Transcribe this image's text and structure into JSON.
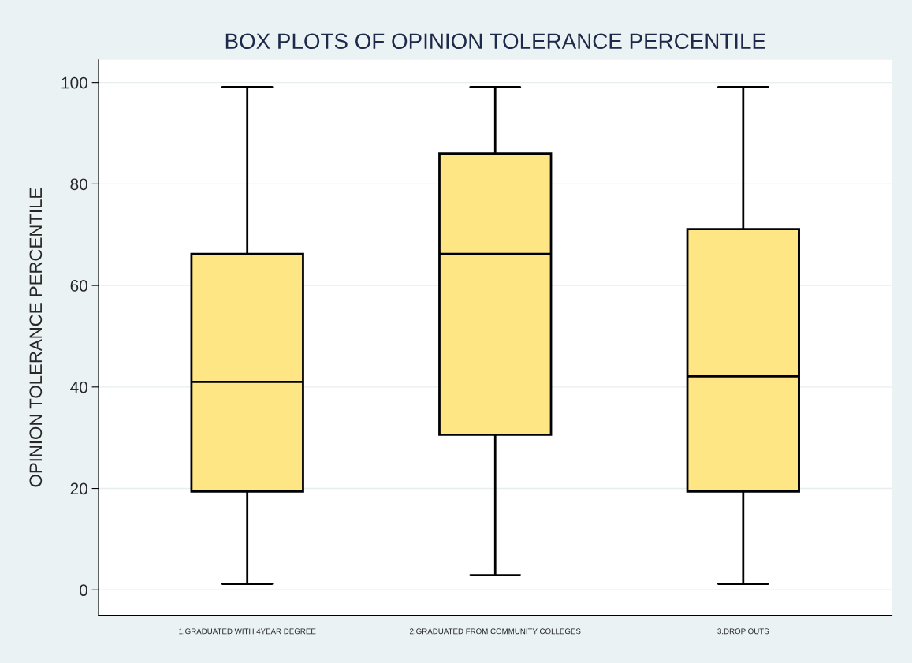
{
  "chart_data": {
    "type": "box",
    "title": "BOX PLOTS OF OPINION TOLERANCE PERCENTILE",
    "ylabel": "OPINION TOLERANCE PERCENTILE",
    "categories": [
      "1.GRADUATED WITH 4YEAR DEGREE",
      "2.GRADUATED FROM COMMUNITY COLLEGES",
      "3.DROP OUTS"
    ],
    "boxes": [
      {
        "low": 1.2,
        "q1": 19.4,
        "median": 41.0,
        "q3": 66.2,
        "high": 99.1
      },
      {
        "low": 2.9,
        "q1": 30.6,
        "median": 66.2,
        "q3": 86.0,
        "high": 99.1
      },
      {
        "low": 1.2,
        "q1": 19.4,
        "median": 42.1,
        "q3": 71.1,
        "high": 99.1
      }
    ],
    "color": "#fee685",
    "ylim": [
      -5,
      104.5
    ],
    "yticks": [
      0,
      20,
      40,
      60,
      80,
      100
    ],
    "grid": "y"
  }
}
